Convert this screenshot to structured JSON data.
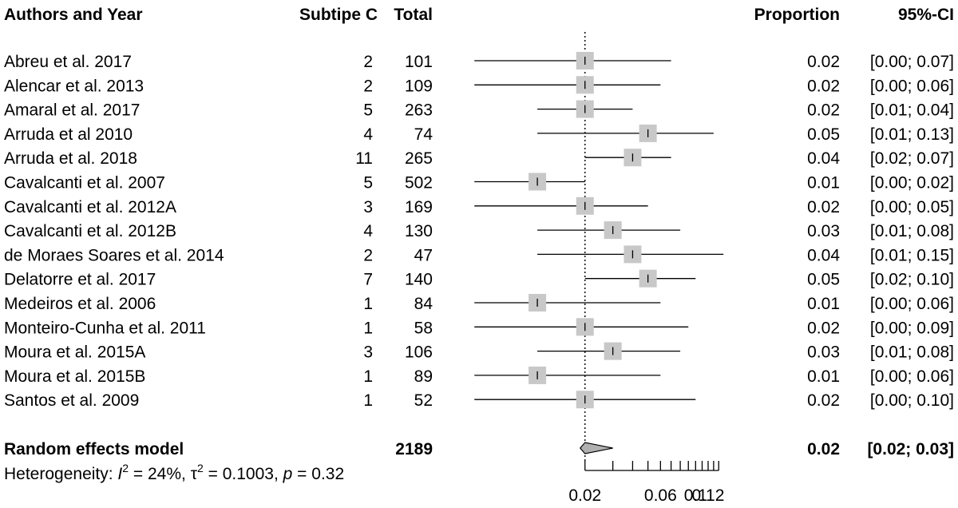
{
  "chart_data": {
    "type": "forest",
    "columns": {
      "study": "Authors and Year",
      "events": "Subtipe C",
      "total": "Total",
      "proportion": "Proportion",
      "ci": "95%-CI"
    },
    "studies": [
      {
        "label": "Abreu et al. 2017",
        "events": "2",
        "total": "101",
        "proportion": 0.02,
        "ci_low": 0.0,
        "ci_high": 0.07,
        "est_text": "0.02",
        "ci_text": "[0.00; 0.07]"
      },
      {
        "label": "Alencar et al. 2013",
        "events": "2",
        "total": "109",
        "proportion": 0.02,
        "ci_low": 0.0,
        "ci_high": 0.06,
        "est_text": "0.02",
        "ci_text": "[0.00; 0.06]"
      },
      {
        "label": "Amaral et al. 2017",
        "events": "5",
        "total": "263",
        "proportion": 0.02,
        "ci_low": 0.01,
        "ci_high": 0.04,
        "est_text": "0.02",
        "ci_text": "[0.01; 0.04]"
      },
      {
        "label": "Arruda et al 2010",
        "events": "4",
        "total": "74",
        "proportion": 0.05,
        "ci_low": 0.01,
        "ci_high": 0.13,
        "est_text": "0.05",
        "ci_text": "[0.01; 0.13]"
      },
      {
        "label": "Arruda et al. 2018",
        "events": "11",
        "total": "265",
        "proportion": 0.04,
        "ci_low": 0.02,
        "ci_high": 0.07,
        "est_text": "0.04",
        "ci_text": "[0.02; 0.07]"
      },
      {
        "label": "Cavalcanti et al. 2007",
        "events": "5",
        "total": "502",
        "proportion": 0.01,
        "ci_low": 0.0,
        "ci_high": 0.02,
        "est_text": "0.01",
        "ci_text": "[0.00; 0.02]"
      },
      {
        "label": "Cavalcanti et al. 2012A",
        "events": "3",
        "total": "169",
        "proportion": 0.02,
        "ci_low": 0.0,
        "ci_high": 0.05,
        "est_text": "0.02",
        "ci_text": "[0.00; 0.05]"
      },
      {
        "label": "Cavalcanti et al. 2012B",
        "events": "4",
        "total": "130",
        "proportion": 0.03,
        "ci_low": 0.01,
        "ci_high": 0.08,
        "est_text": "0.03",
        "ci_text": "[0.01; 0.08]"
      },
      {
        "label": "de Moraes Soares et al. 2014",
        "events": "2",
        "total": "47",
        "proportion": 0.04,
        "ci_low": 0.01,
        "ci_high": 0.15,
        "est_text": "0.04",
        "ci_text": "[0.01; 0.15]"
      },
      {
        "label": "Delatorre et al. 2017",
        "events": "7",
        "total": "140",
        "proportion": 0.05,
        "ci_low": 0.02,
        "ci_high": 0.1,
        "est_text": "0.05",
        "ci_text": "[0.02; 0.10]"
      },
      {
        "label": "Medeiros et al. 2006",
        "events": "1",
        "total": "84",
        "proportion": 0.01,
        "ci_low": 0.0,
        "ci_high": 0.06,
        "est_text": "0.01",
        "ci_text": "[0.00; 0.06]"
      },
      {
        "label": "Monteiro-Cunha et al. 2011",
        "events": "1",
        "total": "58",
        "proportion": 0.02,
        "ci_low": 0.0,
        "ci_high": 0.09,
        "est_text": "0.02",
        "ci_text": "[0.00; 0.09]"
      },
      {
        "label": "Moura et al. 2015A",
        "events": "3",
        "total": "106",
        "proportion": 0.03,
        "ci_low": 0.01,
        "ci_high": 0.08,
        "est_text": "0.03",
        "ci_text": "[0.01; 0.08]"
      },
      {
        "label": "Moura et al. 2015B",
        "events": "1",
        "total": "89",
        "proportion": 0.01,
        "ci_low": 0.0,
        "ci_high": 0.06,
        "est_text": "0.01",
        "ci_text": "[0.00; 0.06]"
      },
      {
        "label": "Santos et al. 2009",
        "events": "1",
        "total": "52",
        "proportion": 0.02,
        "ci_low": 0.0,
        "ci_high": 0.1,
        "est_text": "0.02",
        "ci_text": "[0.00; 0.10]"
      }
    ],
    "summary": {
      "label": "Random effects model",
      "total": "2189",
      "proportion": 0.02,
      "ci_low": 0.02,
      "ci_high": 0.03,
      "est_text": "0.02",
      "ci_text": "[0.02; 0.03]"
    },
    "heterogeneity": {
      "prefix": "Heterogeneity: ",
      "i2_symbol": "I",
      "i2_value": " = 24%, ",
      "tau_symbol": "τ",
      "tau_value": " = 0.1003, ",
      "p_symbol": "p",
      "p_value": " = 0.32"
    },
    "x_axis": {
      "scale": "log",
      "ticks": [
        0.02,
        0.06,
        0.1,
        0.12
      ],
      "tick_labels": [
        "0.02",
        "0.06",
        "0.1",
        "0.12"
      ],
      "minor_ticks": [
        0.01,
        0.03,
        0.04,
        0.05,
        0.07,
        0.08,
        0.09,
        0.11,
        0.13,
        0.14
      ]
    },
    "reference_line": 0.02,
    "colors": {
      "box": "#c8c8c8",
      "diamond": "#b0b0b0",
      "line": "#000000"
    }
  }
}
